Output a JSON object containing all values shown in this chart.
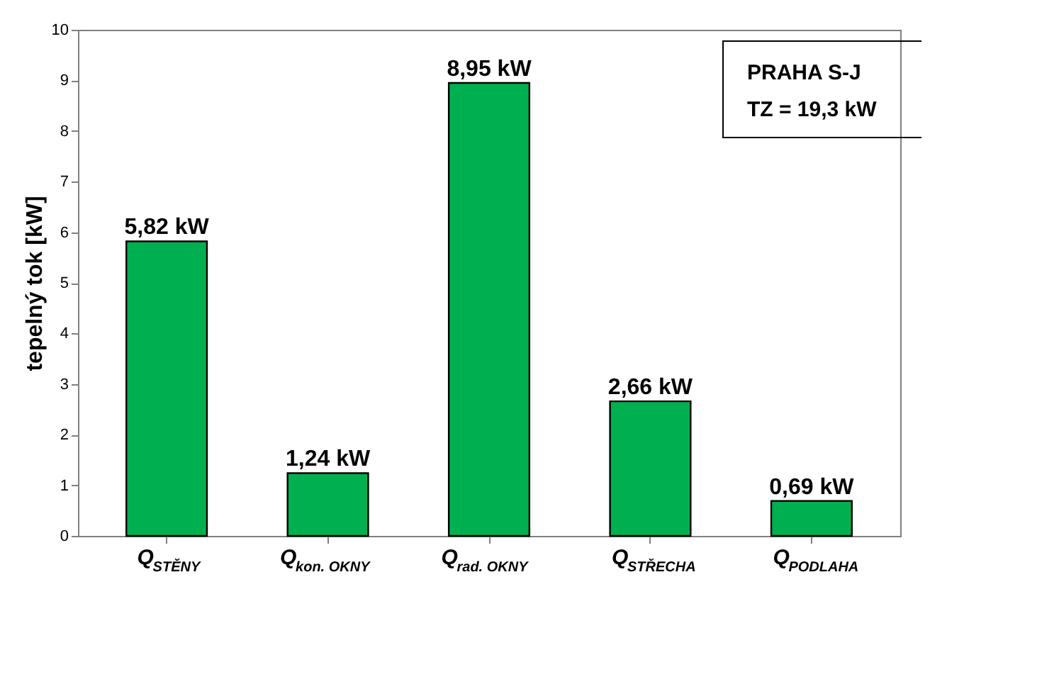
{
  "chart_data": {
    "type": "bar",
    "ylabel": "tepelný tok [kW]",
    "categories": [
      "Q$_{STĚNY}$",
      "Q$_{kon. OKNY}$",
      "Q$_{rad. OKNY}$",
      "Q$_{STŘECHA}$",
      "Q$_{PODLAHA}$"
    ],
    "values": [
      5.82,
      1.24,
      8.95,
      2.66,
      0.69
    ],
    "value_labels": [
      "5,82 kW",
      "1,24 kW",
      "8,95 kW",
      "2,66 kW",
      "0,69 kW"
    ],
    "color": "#00b050",
    "ylim": [
      0,
      10
    ],
    "yticks": [
      0,
      1,
      2,
      3,
      4,
      5,
      6,
      7,
      8,
      9,
      10
    ],
    "grid": false,
    "annotations": [
      "PRAHA S-J",
      "TZ = 19,3 kW"
    ]
  }
}
